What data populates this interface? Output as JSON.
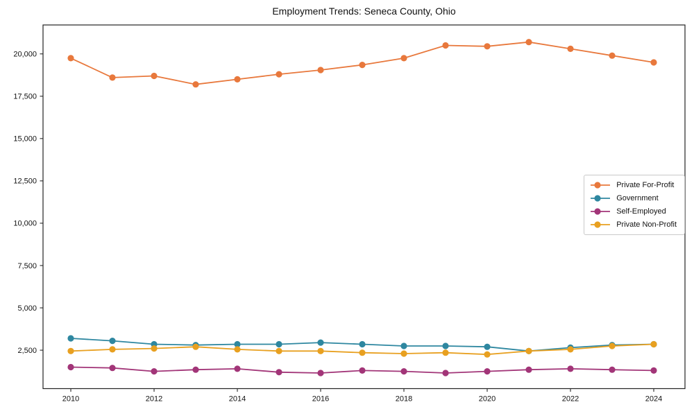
{
  "title": "Employment Trends: Seneca County, Ohio",
  "chart_data": {
    "type": "line",
    "title": "Employment Trends: Seneca County, Ohio",
    "x": [
      2010,
      2011,
      2012,
      2013,
      2014,
      2015,
      2016,
      2017,
      2018,
      2019,
      2020,
      2021,
      2022,
      2023,
      2024
    ],
    "series": [
      {
        "name": "Private For-Profit",
        "color": "#E8783C",
        "values": [
          19750,
          18600,
          18700,
          18200,
          18500,
          18800,
          19050,
          19350,
          19750,
          20500,
          20450,
          20700,
          20300,
          19900,
          19500
        ]
      },
      {
        "name": "Government",
        "color": "#2E87A0",
        "values": [
          3200,
          3050,
          2850,
          2800,
          2850,
          2850,
          2950,
          2850,
          2750,
          2750,
          2700,
          2450,
          2650,
          2800,
          2850
        ]
      },
      {
        "name": "Self-Employed",
        "color": "#A23578",
        "values": [
          1500,
          1450,
          1250,
          1350,
          1400,
          1200,
          1150,
          1300,
          1250,
          1150,
          1250,
          1350,
          1400,
          1350,
          1300
        ]
      },
      {
        "name": "Private Non-Profit",
        "color": "#E8A020",
        "values": [
          2450,
          2550,
          2600,
          2700,
          2550,
          2450,
          2450,
          2350,
          2300,
          2350,
          2250,
          2450,
          2550,
          2750,
          2850
        ]
      }
    ],
    "xticks": [
      2010,
      2012,
      2014,
      2016,
      2018,
      2020,
      2022,
      2024
    ],
    "yticks": [
      2500,
      5000,
      7500,
      10000,
      12500,
      15000,
      17500,
      20000
    ],
    "ytick_labels": [
      "2,500",
      "5,000",
      "7,500",
      "10,000",
      "12,500",
      "15,000",
      "17,500",
      "20,000"
    ],
    "xlim": [
      2009.333,
      2024.75
    ],
    "ylim": [
      230,
      21710
    ],
    "grid": false,
    "legend_position": "center-right",
    "marker": "circle",
    "axis_color": "#111111",
    "frame_color": "#222222"
  }
}
